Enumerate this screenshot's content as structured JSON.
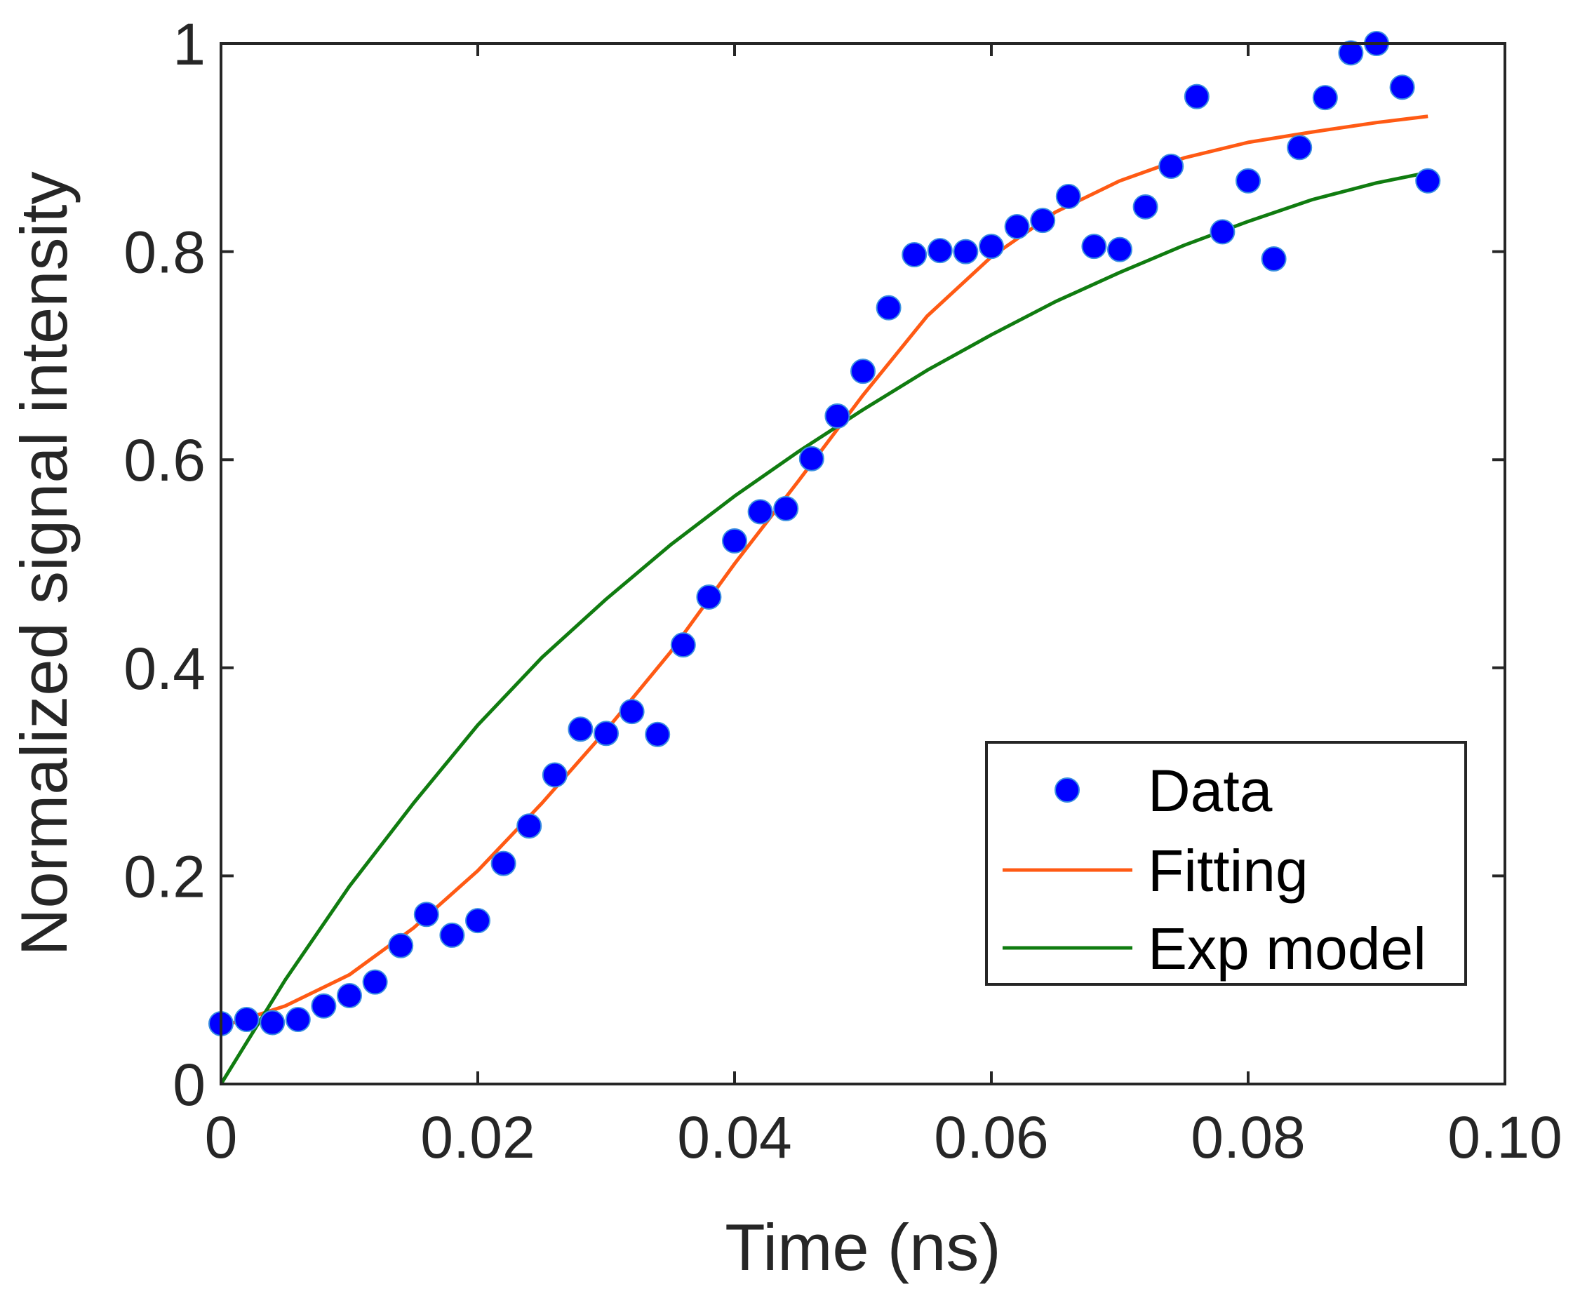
{
  "chart_data": {
    "type": "scatter",
    "xlabel": "Time (ns)",
    "ylabel": "Normalized signal intensity",
    "xlim": [
      0,
      0.1
    ],
    "ylim": [
      0,
      1
    ],
    "xticks": [
      "0",
      "0.02",
      "0.04",
      "0.06",
      "0.08",
      "0.10"
    ],
    "xtick_values": [
      0,
      0.02,
      0.04,
      0.06,
      0.08,
      0.1
    ],
    "yticks": [
      "0",
      "0.2",
      "0.4",
      "0.6",
      "0.8",
      "1"
    ],
    "ytick_values": [
      0,
      0.2,
      0.4,
      0.6,
      0.8,
      1
    ],
    "grid": false,
    "legend_position": "bottom-right",
    "series": [
      {
        "name": "Data",
        "kind": "markers",
        "color": "#0000ff",
        "x": [
          0.0,
          0.002,
          0.004,
          0.006,
          0.008,
          0.01,
          0.012,
          0.014,
          0.016,
          0.018,
          0.02,
          0.022,
          0.024,
          0.026,
          0.028,
          0.03,
          0.032,
          0.034,
          0.036,
          0.038,
          0.04,
          0.042,
          0.044,
          0.046,
          0.048,
          0.05,
          0.052,
          0.054,
          0.056,
          0.058,
          0.06,
          0.062,
          0.064,
          0.066,
          0.068,
          0.07,
          0.072,
          0.074,
          0.076,
          0.078,
          0.08,
          0.082,
          0.084,
          0.086,
          0.088,
          0.09,
          0.092,
          0.094
        ],
        "y": [
          0.058,
          0.062,
          0.059,
          0.062,
          0.075,
          0.085,
          0.098,
          0.133,
          0.163,
          0.143,
          0.157,
          0.212,
          0.248,
          0.297,
          0.341,
          0.337,
          0.358,
          0.336,
          0.422,
          0.468,
          0.522,
          0.55,
          0.553,
          0.601,
          0.642,
          0.685,
          0.746,
          0.797,
          0.801,
          0.8,
          0.805,
          0.824,
          0.83,
          0.853,
          0.805,
          0.802,
          0.843,
          0.882,
          0.949,
          0.819,
          0.868,
          0.793,
          0.9,
          0.948,
          0.991,
          1.0,
          0.958,
          0.868
        ]
      },
      {
        "name": "Fitting",
        "kind": "line",
        "color": "#ff5a14",
        "x": [
          0.0,
          0.005,
          0.01,
          0.015,
          0.02,
          0.025,
          0.03,
          0.035,
          0.04,
          0.045,
          0.05,
          0.055,
          0.06,
          0.065,
          0.07,
          0.075,
          0.08,
          0.085,
          0.09,
          0.094
        ],
        "y": [
          0.055,
          0.075,
          0.105,
          0.15,
          0.205,
          0.27,
          0.34,
          0.415,
          0.5,
          0.58,
          0.662,
          0.738,
          0.795,
          0.838,
          0.868,
          0.89,
          0.905,
          0.915,
          0.924,
          0.93
        ]
      },
      {
        "name": "Exp model",
        "kind": "line",
        "color": "#107c10",
        "x": [
          0.0,
          0.005,
          0.01,
          0.015,
          0.02,
          0.025,
          0.03,
          0.035,
          0.04,
          0.045,
          0.05,
          0.055,
          0.06,
          0.065,
          0.07,
          0.075,
          0.08,
          0.085,
          0.09,
          0.094
        ],
        "y": [
          0.0,
          0.1,
          0.19,
          0.27,
          0.345,
          0.41,
          0.466,
          0.518,
          0.565,
          0.608,
          0.648,
          0.686,
          0.72,
          0.752,
          0.78,
          0.806,
          0.829,
          0.85,
          0.866,
          0.876
        ]
      }
    ]
  }
}
